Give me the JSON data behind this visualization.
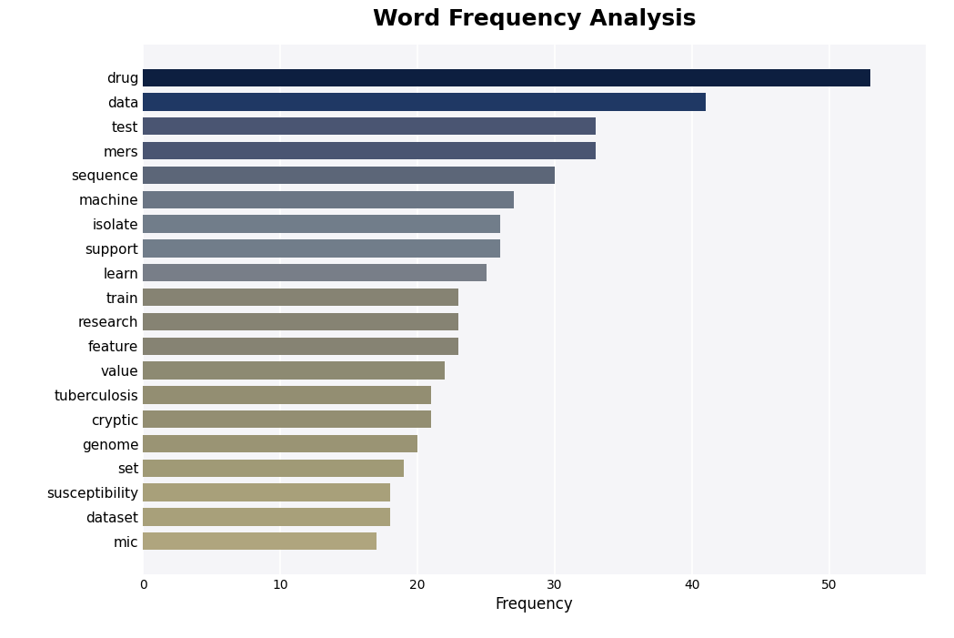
{
  "title": "Word Frequency Analysis",
  "xlabel": "Frequency",
  "categories": [
    "drug",
    "data",
    "test",
    "mers",
    "sequence",
    "machine",
    "isolate",
    "support",
    "learn",
    "train",
    "research",
    "feature",
    "value",
    "tuberculosis",
    "cryptic",
    "genome",
    "set",
    "susceptibility",
    "dataset",
    "mic"
  ],
  "values": [
    53,
    41,
    33,
    33,
    30,
    27,
    26,
    26,
    25,
    23,
    23,
    23,
    22,
    21,
    21,
    20,
    19,
    18,
    18,
    17
  ],
  "bar_colors": [
    "#0d1f40",
    "#1f3864",
    "#4a5572",
    "#4a5572",
    "#5c6678",
    "#6b7685",
    "#717d8a",
    "#717d8a",
    "#787e88",
    "#868373",
    "#868373",
    "#868373",
    "#8d8a72",
    "#938e72",
    "#938e72",
    "#9a9474",
    "#a09a76",
    "#a8a07a",
    "#a8a07a",
    "#afa57e"
  ],
  "plot_bg_color": "#f5f5f8",
  "fig_bg_color": "#ffffff",
  "title_fontsize": 18,
  "tick_fontsize": 11,
  "xlabel_fontsize": 12,
  "xlim": [
    0,
    57
  ],
  "xticks": [
    0,
    10,
    20,
    30,
    40,
    50
  ],
  "bar_height": 0.72,
  "grid_color": "#ffffff",
  "grid_linewidth": 1.2
}
